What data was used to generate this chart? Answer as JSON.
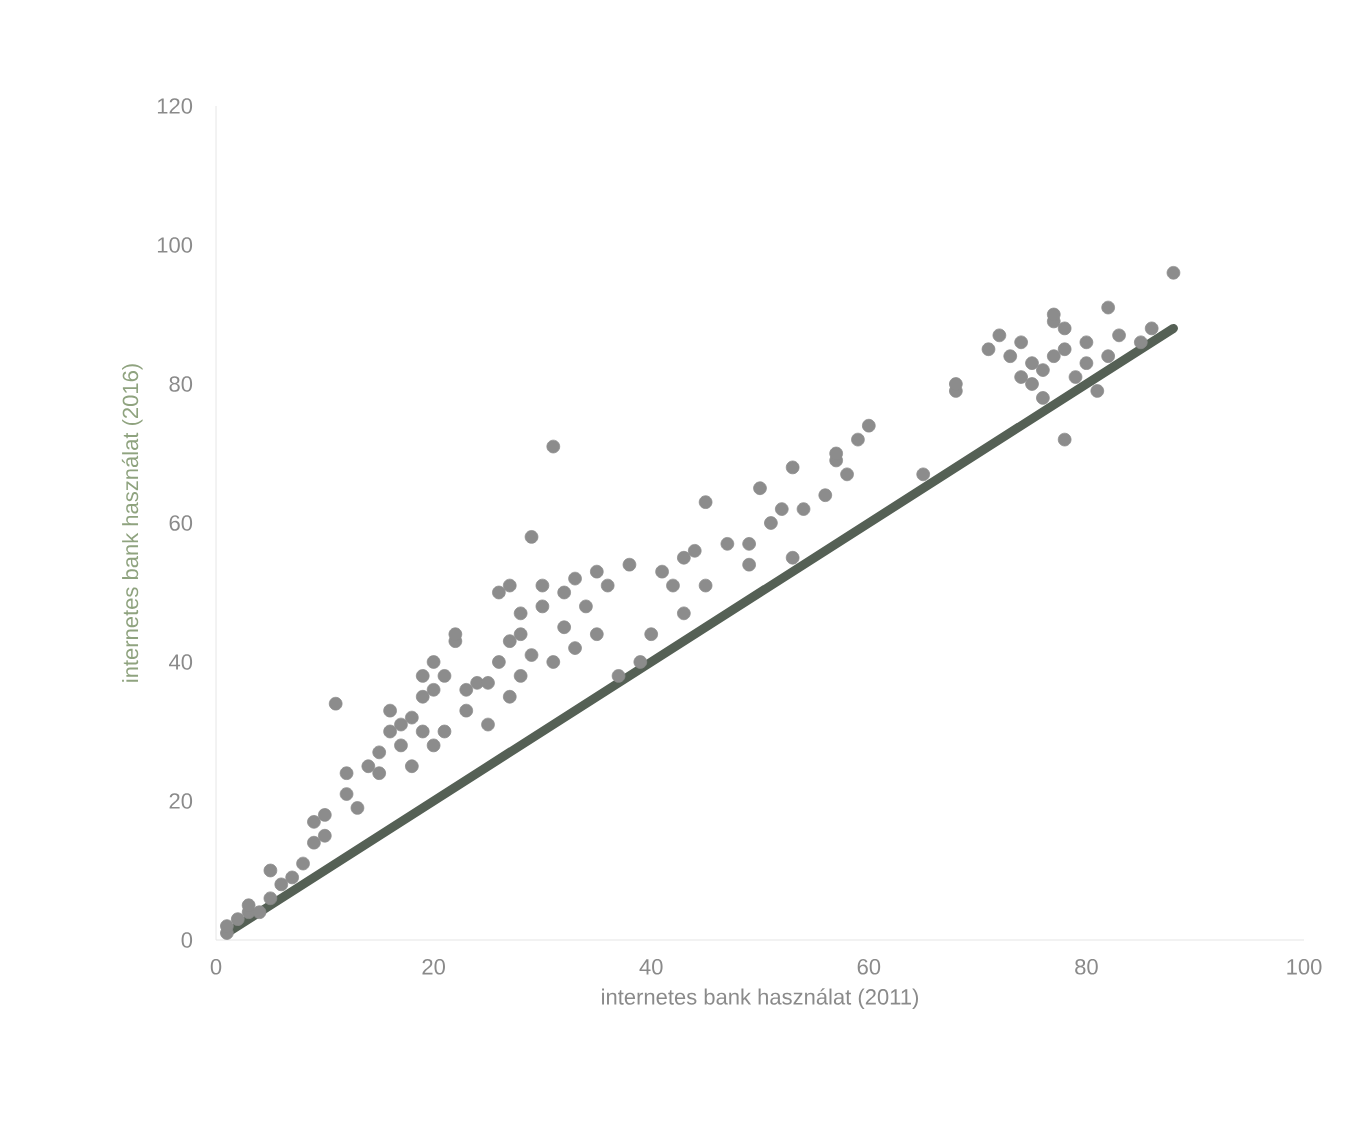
{
  "chart_data": {
    "type": "scatter",
    "xlabel": "internetes bank használat (2011)",
    "ylabel": "internetes bank használat (2016)",
    "xlim": [
      0,
      100
    ],
    "ylim": [
      0,
      120
    ],
    "xticks": [
      0,
      20,
      40,
      60,
      80,
      100
    ],
    "yticks": [
      0,
      20,
      40,
      60,
      80,
      100,
      120
    ],
    "grid": false,
    "marker": "circle",
    "series": [
      {
        "color": "#8c8c8c",
        "x": [
          1,
          1,
          2,
          3,
          3,
          4,
          5,
          5,
          6,
          7,
          8,
          9,
          9,
          10,
          10,
          11,
          12,
          12,
          13,
          14,
          15,
          15,
          16,
          16,
          17,
          17,
          18,
          18,
          19,
          19,
          19,
          20,
          20,
          20,
          21,
          21,
          22,
          22,
          23,
          23,
          24,
          25,
          25,
          26,
          26,
          27,
          27,
          27,
          28,
          28,
          28,
          29,
          29,
          30,
          30,
          31,
          31,
          32,
          32,
          33,
          33,
          34,
          35,
          35,
          36,
          37,
          38,
          39,
          40,
          41,
          42,
          43,
          43,
          44,
          45,
          45,
          47,
          49,
          49,
          50,
          51,
          52,
          53,
          53,
          54,
          56,
          57,
          57,
          58,
          59,
          60,
          65,
          68,
          68,
          71,
          72,
          73,
          74,
          74,
          75,
          75,
          76,
          76,
          77,
          77,
          77,
          78,
          78,
          78,
          79,
          80,
          80,
          81,
          82,
          82,
          83,
          85,
          86,
          88
        ],
        "values": [
          1,
          2,
          3,
          4,
          5,
          4,
          6,
          10,
          8,
          9,
          11,
          14,
          17,
          15,
          18,
          34,
          21,
          24,
          19,
          25,
          24,
          27,
          30,
          33,
          28,
          31,
          32,
          25,
          30,
          35,
          38,
          28,
          36,
          40,
          30,
          38,
          43,
          44,
          33,
          36,
          37,
          31,
          37,
          40,
          50,
          35,
          43,
          51,
          38,
          44,
          47,
          41,
          58,
          48,
          51,
          71,
          40,
          45,
          50,
          42,
          52,
          48,
          53,
          44,
          51,
          38,
          54,
          40,
          44,
          53,
          51,
          47,
          55,
          56,
          51,
          63,
          57,
          54,
          57,
          65,
          60,
          62,
          55,
          68,
          62,
          64,
          69,
          70,
          67,
          72,
          74,
          67,
          79,
          80,
          85,
          87,
          84,
          86,
          81,
          83,
          80,
          82,
          78,
          84,
          89,
          90,
          88,
          72,
          85,
          81,
          83,
          86,
          79,
          91,
          84,
          87,
          86,
          88,
          96
        ]
      },
      {
        "type": "line",
        "color": "#556055",
        "marker": "none",
        "line_style": "solid",
        "x": [
          1,
          88
        ],
        "values": [
          1,
          88
        ]
      }
    ]
  }
}
